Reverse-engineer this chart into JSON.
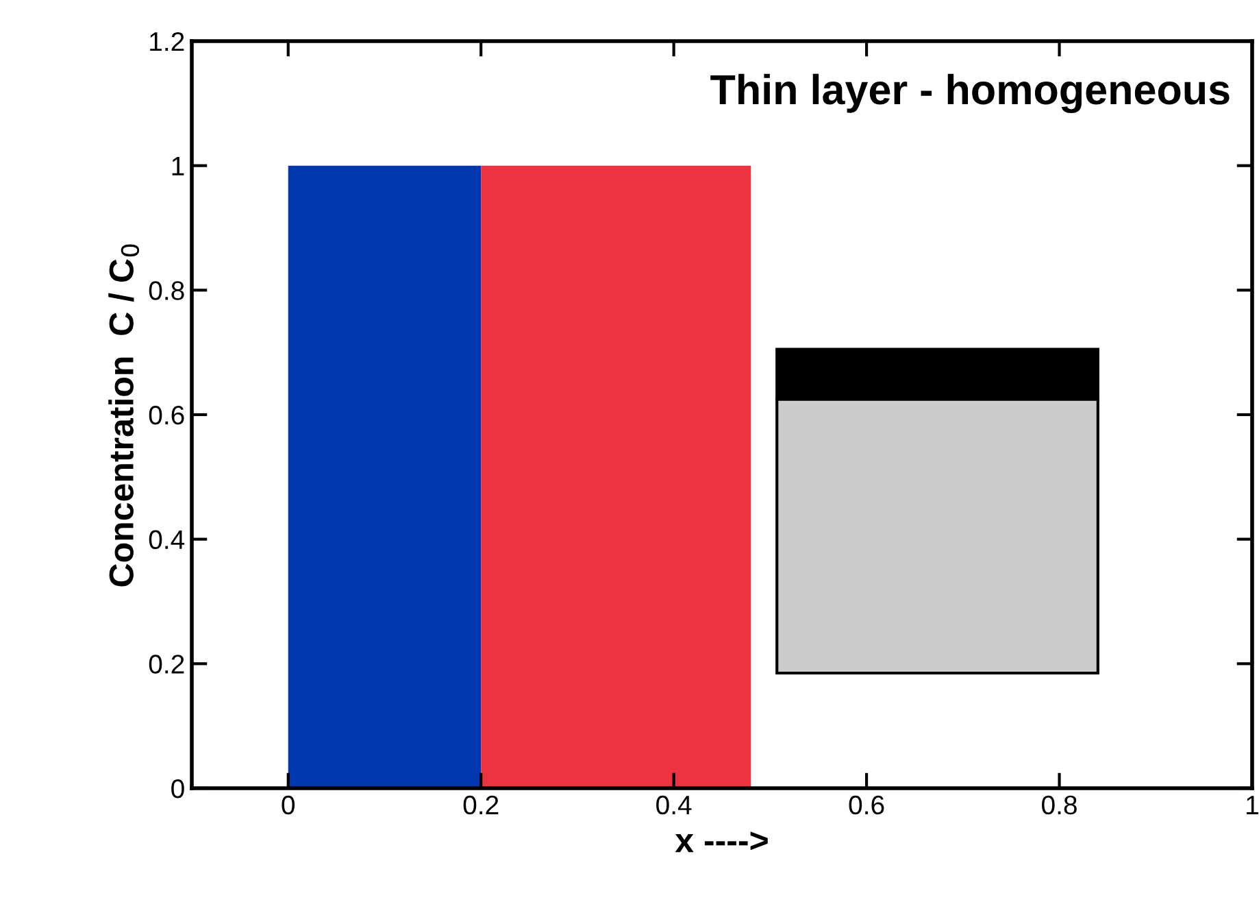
{
  "chart_data": {
    "type": "area",
    "title": "Thin layer - homogeneous",
    "xlabel": "x ---->",
    "ylabel": "Concentration  C / C$_{0}$",
    "series": [
      {
        "x": [
          0,
          0.2
        ],
        "values": [
          1.0,
          1.0
        ],
        "color": "#0038b0"
      },
      {
        "x": [
          0.2,
          0.48
        ],
        "values": [
          1.0,
          1.0
        ],
        "color": "#ee3340"
      }
    ],
    "xlim": [
      -0.1,
      1.0
    ],
    "xticks": [
      0,
      0.2,
      0.4,
      0.6,
      0.8,
      1
    ],
    "ylim": [
      0,
      1.2
    ],
    "yticks": [
      0,
      0.2,
      0.4,
      0.6,
      0.8,
      1,
      1.2
    ],
    "grid": false,
    "legend": false
  }
}
